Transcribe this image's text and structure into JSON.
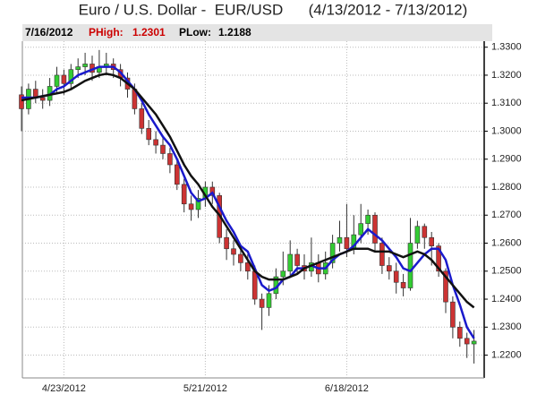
{
  "chart_data": {
    "type": "candlestick",
    "title": "Euro / U.S. Dollar -  EUR/USD      (4/13/2012 - 7/13/2012)",
    "header": {
      "date": "7/16/2012",
      "high_label": "PHigh:",
      "high": 1.2301,
      "low_label": "PLow:",
      "low": 1.2188
    },
    "categories": [
      null,
      null,
      null,
      null,
      null,
      null,
      "4/23/2012",
      null,
      null,
      null,
      null,
      null,
      null,
      null,
      null,
      null,
      null,
      null,
      null,
      null,
      null,
      null,
      null,
      null,
      null,
      null,
      "5/21/2012",
      null,
      null,
      null,
      null,
      null,
      null,
      null,
      null,
      null,
      null,
      null,
      null,
      null,
      null,
      null,
      null,
      null,
      null,
      null,
      "6/18/2012",
      null,
      null,
      null,
      null,
      null,
      null,
      null,
      null,
      null,
      null,
      null,
      null,
      null,
      null,
      null,
      null,
      null,
      null
    ],
    "open": [
      1.313,
      1.308,
      1.315,
      1.312,
      1.311,
      1.316,
      1.32,
      1.317,
      1.322,
      1.323,
      1.324,
      1.321,
      1.323,
      1.324,
      1.322,
      1.319,
      1.315,
      1.308,
      1.301,
      1.297,
      1.295,
      1.292,
      1.288,
      1.281,
      1.274,
      1.272,
      1.276,
      1.28,
      1.277,
      1.262,
      1.258,
      1.256,
      1.253,
      1.25,
      1.24,
      1.237,
      1.242,
      1.248,
      1.25,
      1.256,
      1.252,
      1.25,
      1.253,
      1.249,
      1.253,
      1.26,
      1.262,
      1.258,
      1.263,
      1.267,
      1.27,
      1.26,
      1.252,
      1.25,
      1.246,
      1.244,
      1.26,
      1.266,
      1.262,
      1.259,
      1.25,
      1.239,
      1.23,
      1.226,
      1.224
    ],
    "high": [
      1.316,
      1.317,
      1.318,
      1.315,
      1.319,
      1.323,
      1.322,
      1.324,
      1.326,
      1.328,
      1.327,
      1.329,
      1.328,
      1.326,
      1.324,
      1.321,
      1.317,
      1.31,
      1.304,
      1.3,
      1.298,
      1.294,
      1.29,
      1.283,
      1.277,
      1.279,
      1.282,
      1.282,
      1.278,
      1.265,
      1.261,
      1.259,
      1.256,
      1.252,
      1.242,
      1.245,
      1.251,
      1.257,
      1.261,
      1.258,
      1.256,
      1.262,
      1.256,
      1.257,
      1.263,
      1.268,
      1.274,
      1.27,
      1.274,
      1.272,
      1.271,
      1.262,
      1.255,
      1.253,
      1.249,
      1.269,
      1.268,
      1.267,
      1.264,
      1.26,
      1.251,
      1.241,
      1.232,
      1.228,
      1.229
    ],
    "low": [
      1.3,
      1.306,
      1.31,
      1.308,
      1.309,
      1.314,
      1.313,
      1.315,
      1.319,
      1.32,
      1.318,
      1.319,
      1.32,
      1.319,
      1.316,
      1.312,
      1.306,
      1.299,
      1.295,
      1.292,
      1.29,
      1.285,
      1.279,
      1.271,
      1.268,
      1.269,
      1.273,
      1.274,
      1.26,
      1.254,
      1.252,
      1.25,
      1.247,
      1.238,
      1.229,
      1.234,
      1.24,
      1.245,
      1.248,
      1.249,
      1.247,
      1.248,
      1.246,
      1.247,
      1.251,
      1.257,
      1.255,
      1.256,
      1.26,
      1.263,
      1.257,
      1.249,
      1.247,
      1.242,
      1.241,
      1.243,
      1.258,
      1.258,
      1.252,
      1.248,
      1.235,
      1.226,
      1.223,
      1.219,
      1.217
    ],
    "close": [
      1.308,
      1.315,
      1.312,
      1.311,
      1.316,
      1.32,
      1.317,
      1.322,
      1.323,
      1.324,
      1.321,
      1.323,
      1.324,
      1.322,
      1.319,
      1.315,
      1.308,
      1.301,
      1.297,
      1.295,
      1.292,
      1.288,
      1.281,
      1.274,
      1.272,
      1.276,
      1.28,
      1.277,
      1.262,
      1.258,
      1.256,
      1.253,
      1.25,
      1.24,
      1.237,
      1.242,
      1.248,
      1.25,
      1.256,
      1.252,
      1.25,
      1.253,
      1.249,
      1.253,
      1.26,
      1.262,
      1.258,
      1.263,
      1.267,
      1.27,
      1.26,
      1.252,
      1.25,
      1.246,
      1.244,
      1.26,
      1.266,
      1.262,
      1.259,
      1.25,
      1.239,
      1.23,
      1.226,
      1.224,
      1.225
    ],
    "up_color": "#33cc33",
    "down_color": "#cc3333",
    "lines": [
      {
        "color": "#1a1acc",
        "values": [
          1.312,
          1.312,
          1.312,
          1.3125,
          1.313,
          1.315,
          1.316,
          1.318,
          1.32,
          1.321,
          1.322,
          1.323,
          1.323,
          1.323,
          1.321,
          1.318,
          1.315,
          1.311,
          1.306,
          1.302,
          1.298,
          1.295,
          1.29,
          1.284,
          1.278,
          1.275,
          1.276,
          1.278,
          1.273,
          1.268,
          1.264,
          1.259,
          1.257,
          1.251,
          1.245,
          1.243,
          1.244,
          1.247,
          1.248,
          1.251,
          1.251,
          1.252,
          1.251,
          1.251,
          1.254,
          1.256,
          1.257,
          1.259,
          1.262,
          1.265,
          1.263,
          1.261,
          1.258,
          1.255,
          1.251,
          1.25,
          1.253,
          1.256,
          1.258,
          1.258,
          1.254,
          1.245,
          1.238,
          1.23,
          1.226
        ]
      },
      {
        "color": "#111111",
        "values": [
          1.311,
          1.3115,
          1.312,
          1.3125,
          1.313,
          1.3135,
          1.314,
          1.315,
          1.3165,
          1.318,
          1.319,
          1.32,
          1.3205,
          1.32,
          1.319,
          1.317,
          1.315,
          1.312,
          1.309,
          1.306,
          1.302,
          1.298,
          1.293,
          1.288,
          1.284,
          1.281,
          1.277,
          1.273,
          1.27,
          1.266,
          1.262,
          1.258,
          1.254,
          1.25,
          1.248,
          1.247,
          1.247,
          1.247,
          1.248,
          1.249,
          1.251,
          1.252,
          1.253,
          1.254,
          1.255,
          1.256,
          1.257,
          1.258,
          1.258,
          1.258,
          1.257,
          1.257,
          1.257,
          1.256,
          1.255,
          1.256,
          1.257,
          1.256,
          1.254,
          1.251,
          1.248,
          1.245,
          1.242,
          1.239,
          1.237
        ]
      }
    ],
    "ylim": [
      1.2125,
      1.3315
    ],
    "yticks": [
      {
        "value": 1.22,
        "label": "1.2200"
      },
      {
        "value": 1.23,
        "label": "1.2300"
      },
      {
        "value": 1.24,
        "label": "1.2400"
      },
      {
        "value": 1.25,
        "label": "1.2500"
      },
      {
        "value": 1.26,
        "label": "1.2600"
      },
      {
        "value": 1.27,
        "label": "1.2700"
      },
      {
        "value": 1.28,
        "label": "1.2800"
      },
      {
        "value": 1.29,
        "label": "1.2900"
      },
      {
        "value": 1.3,
        "label": "1.3000"
      },
      {
        "value": 1.31,
        "label": "1.3100"
      },
      {
        "value": 1.32,
        "label": "1.3200"
      },
      {
        "value": 1.33,
        "label": "1.3300"
      }
    ],
    "grid": true
  }
}
